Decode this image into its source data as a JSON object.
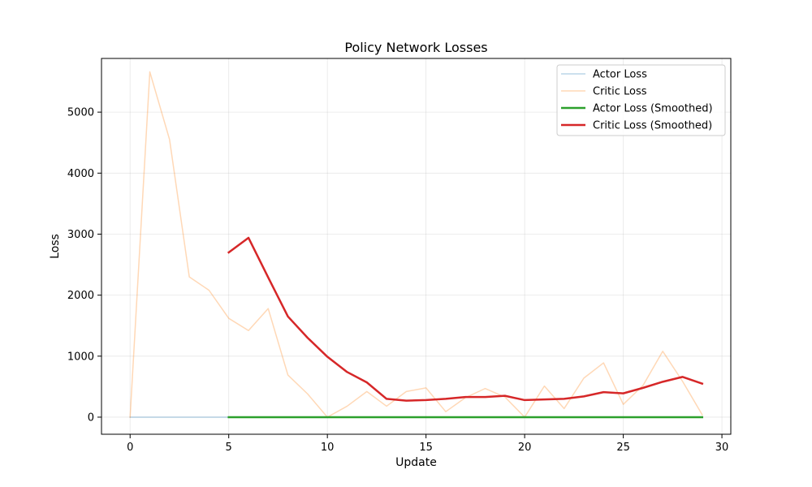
{
  "chart_data": {
    "type": "line",
    "title": "Policy Network Losses",
    "xlabel": "Update",
    "ylabel": "Loss",
    "xlim": [
      -1.45,
      30.45
    ],
    "ylim": [
      -280,
      5880
    ],
    "xticks": [
      0,
      5,
      10,
      15,
      20,
      25,
      30
    ],
    "yticks": [
      0,
      1000,
      2000,
      3000,
      4000,
      5000
    ],
    "grid": true,
    "legend_position": "top-right",
    "series": [
      {
        "name": "Actor Loss",
        "color": "#1f77b4",
        "alpha": 0.3,
        "width": 1.5,
        "x": [
          0,
          1,
          2,
          3,
          4,
          5,
          6,
          7,
          8,
          9,
          10,
          11,
          12,
          13,
          14,
          15,
          16,
          17,
          18,
          19,
          20,
          21,
          22,
          23,
          24,
          25,
          26,
          27,
          28,
          29
        ],
        "y": [
          0,
          0,
          0,
          0,
          0,
          0,
          0,
          0,
          0,
          0,
          0,
          0,
          0,
          0,
          0,
          0,
          0,
          0,
          0,
          0,
          0,
          0,
          0,
          0,
          0,
          0,
          0,
          0,
          0,
          0
        ]
      },
      {
        "name": "Critic Loss",
        "color": "#ff7f0e",
        "alpha": 0.3,
        "width": 1.5,
        "x": [
          0,
          1,
          2,
          3,
          4,
          5,
          6,
          7,
          8,
          9,
          10,
          11,
          12,
          13,
          14,
          15,
          16,
          17,
          18,
          19,
          20,
          21,
          22,
          23,
          24,
          25,
          26,
          27,
          28,
          29
        ],
        "y": [
          0,
          5660,
          4550,
          2300,
          2080,
          1620,
          1420,
          1780,
          690,
          380,
          0,
          180,
          420,
          180,
          420,
          480,
          90,
          320,
          470,
          330,
          0,
          510,
          140,
          640,
          890,
          210,
          520,
          1080,
          590,
          40
        ]
      },
      {
        "name": "Actor Loss (Smoothed)",
        "color": "#2ca02c",
        "alpha": 1,
        "width": 2.5,
        "x": [
          5,
          6,
          7,
          8,
          9,
          10,
          11,
          12,
          13,
          14,
          15,
          16,
          17,
          18,
          19,
          20,
          21,
          22,
          23,
          24,
          25,
          26,
          27,
          28,
          29
        ],
        "y": [
          0,
          0,
          0,
          0,
          0,
          0,
          0,
          0,
          0,
          0,
          0,
          0,
          0,
          0,
          0,
          0,
          0,
          0,
          0,
          0,
          0,
          0,
          0,
          0,
          0
        ]
      },
      {
        "name": "Critic Loss (Smoothed)",
        "color": "#d62728",
        "alpha": 1,
        "width": 2.5,
        "x": [
          5,
          6,
          7,
          8,
          9,
          10,
          11,
          12,
          13,
          14,
          15,
          16,
          17,
          18,
          19,
          20,
          21,
          22,
          23,
          24,
          25,
          26,
          27,
          28,
          29
        ],
        "y": [
          2700,
          2940,
          2290,
          1650,
          1300,
          990,
          740,
          570,
          300,
          270,
          280,
          300,
          330,
          330,
          350,
          280,
          290,
          300,
          340,
          410,
          390,
          480,
          580,
          660,
          550
        ]
      }
    ]
  }
}
